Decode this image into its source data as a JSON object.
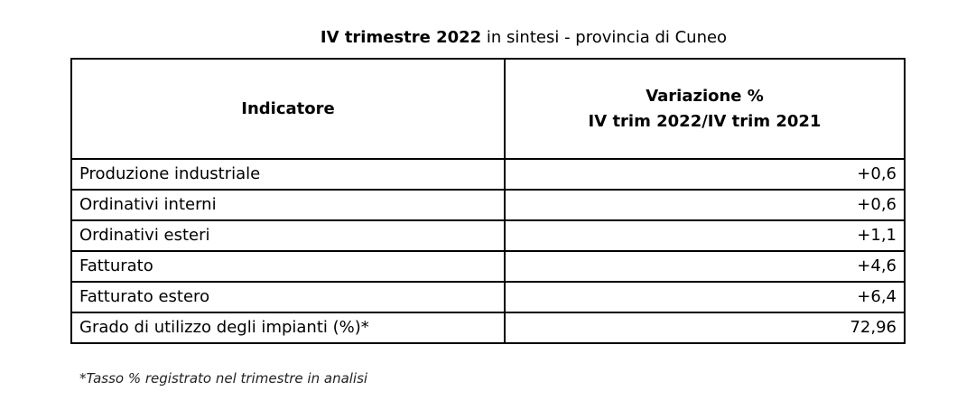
{
  "title": {
    "bold": "IV trimestre 2022",
    "rest": " in sintesi - provincia di Cuneo"
  },
  "table": {
    "headers": [
      "Indicatore",
      "Variazione %",
      "IV trim 2022/IV trim 2021"
    ],
    "rows": [
      {
        "label": "Produzione industriale",
        "value": "+0,6"
      },
      {
        "label": "Ordinativi interni",
        "value": "+0,6"
      },
      {
        "label": "Ordinativi esteri",
        "value": "+1,1"
      },
      {
        "label": "Fatturato",
        "value": "+4,6"
      },
      {
        "label": "Fatturato estero",
        "value": "+6,4"
      },
      {
        "label": "Grado di utilizzo degli impianti (%)*",
        "value": "72,96"
      }
    ]
  },
  "footnote": "*Tasso % registrato nel trimestre in analisi"
}
